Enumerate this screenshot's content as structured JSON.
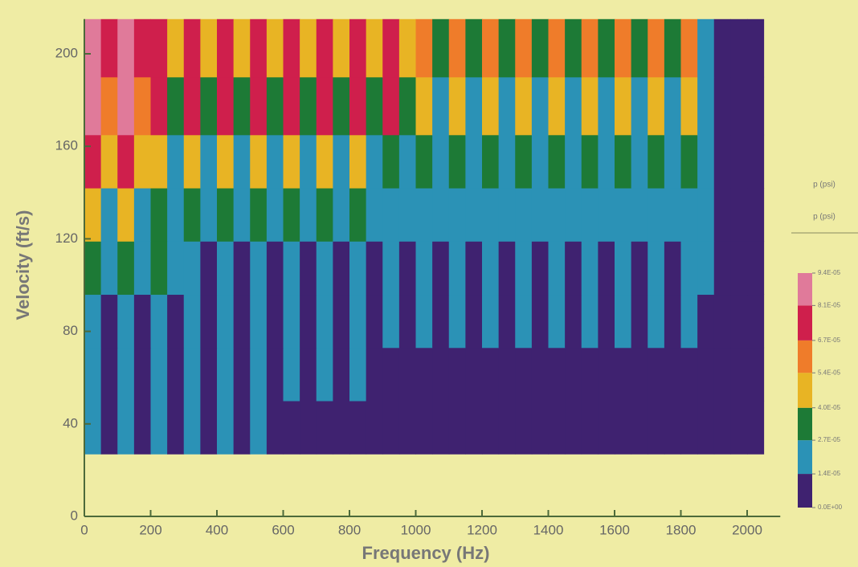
{
  "chart_data": {
    "type": "heatmap",
    "x_label": "Frequency (Hz)",
    "y_label": "Velocity (ft/s)",
    "legend_title": "p (psi)",
    "legend_subtitle": "p (psi)",
    "xlim": [
      0,
      2100
    ],
    "ylim": [
      0,
      215
    ],
    "xticks": [
      0,
      200,
      400,
      600,
      800,
      1000,
      1200,
      1400,
      1600,
      1800,
      2000
    ],
    "yticks": [
      0,
      40,
      80,
      120,
      160,
      200
    ],
    "x_bins": [
      0,
      50,
      100,
      150,
      200,
      250,
      300,
      350,
      400,
      450,
      500,
      550,
      600,
      650,
      700,
      750,
      800,
      850,
      900,
      950,
      1000,
      1050,
      1100,
      1150,
      1200,
      1250,
      1300,
      1350,
      1400,
      1450,
      1500,
      1550,
      1600,
      1650,
      1700,
      1750,
      1800,
      1850,
      1900,
      1950,
      2000,
      2050
    ],
    "y_bins": [
      27,
      50,
      73,
      96,
      119,
      142,
      165,
      190,
      215
    ],
    "values": [
      [
        1.8e-05,
        6e-06,
        1.8e-05,
        6e-06,
        1.8e-05,
        6e-06,
        1.8e-05,
        6e-06,
        1.8e-05,
        6e-06,
        1.8e-05,
        6e-06,
        5e-06,
        5e-06,
        5e-06,
        5e-06,
        5e-06,
        5e-06,
        5e-06,
        5e-06,
        5e-06,
        5e-06,
        5e-06,
        5e-06,
        5e-06,
        5e-06,
        5e-06,
        5e-06,
        5e-06,
        5e-06,
        5e-06,
        5e-06,
        5e-06,
        5e-06,
        5e-06,
        5e-06,
        5e-06,
        5e-06,
        5e-06,
        5e-06,
        5e-06
      ],
      [
        2e-05,
        8e-06,
        2e-05,
        8e-06,
        2e-05,
        8e-06,
        2e-05,
        8e-06,
        2e-05,
        8e-06,
        2e-05,
        8e-06,
        2e-05,
        8e-06,
        2e-05,
        8e-06,
        2e-05,
        8e-06,
        5e-06,
        5e-06,
        5e-06,
        5e-06,
        5e-06,
        5e-06,
        5e-06,
        5e-06,
        5e-06,
        5e-06,
        5e-06,
        5e-06,
        5e-06,
        5e-06,
        5e-06,
        5e-06,
        5e-06,
        5e-06,
        5e-06,
        5e-06,
        5e-06,
        5e-06,
        5e-06
      ],
      [
        2.3e-05,
        1e-05,
        2.3e-05,
        1e-05,
        2.3e-05,
        1e-05,
        2.3e-05,
        1e-05,
        2.3e-05,
        1e-05,
        2.3e-05,
        1e-05,
        2.3e-05,
        1e-05,
        2.3e-05,
        1e-05,
        2.3e-05,
        1e-05,
        2.3e-05,
        1e-05,
        2.3e-05,
        1e-05,
        2.3e-05,
        1e-05,
        2.3e-05,
        1e-05,
        1.6e-05,
        9e-06,
        1.6e-05,
        9e-06,
        1.6e-05,
        9e-06,
        1.6e-05,
        9e-06,
        1.6e-05,
        9e-06,
        1.6e-05,
        5e-06,
        5e-06,
        5e-06,
        5e-06
      ],
      [
        3e-05,
        1.6e-05,
        3e-05,
        1.6e-05,
        3e-05,
        1.6e-05,
        2.2e-05,
        1.2e-05,
        2.2e-05,
        1.2e-05,
        2.2e-05,
        1.2e-05,
        2.2e-05,
        1.2e-05,
        2.2e-05,
        1.2e-05,
        2.2e-05,
        1.2e-05,
        2.2e-05,
        1.2e-05,
        2.2e-05,
        1.2e-05,
        2.2e-05,
        1.2e-05,
        2.2e-05,
        1.2e-05,
        2.2e-05,
        1.2e-05,
        2.2e-05,
        1.2e-05,
        2.2e-05,
        1.2e-05,
        2.2e-05,
        1.2e-05,
        2.2e-05,
        1.2e-05,
        2.2e-05,
        1.5e-05,
        6e-06,
        6e-06,
        6e-06
      ],
      [
        4.5e-05,
        2.5e-05,
        4.5e-05,
        2.5e-05,
        3.2e-05,
        1.8e-05,
        3.2e-05,
        1.8e-05,
        3.2e-05,
        1.8e-05,
        3.2e-05,
        1.8e-05,
        3.2e-05,
        1.8e-05,
        3.2e-05,
        1.8e-05,
        3.2e-05,
        1.8e-05,
        2.4e-05,
        1.6e-05,
        2.4e-05,
        1.6e-05,
        2.4e-05,
        1.6e-05,
        2.4e-05,
        1.6e-05,
        2.4e-05,
        1.6e-05,
        2.4e-05,
        1.6e-05,
        2.4e-05,
        1.6e-05,
        2.4e-05,
        1.6e-05,
        2.4e-05,
        1.6e-05,
        2.4e-05,
        1.8e-05,
        6e-06,
        6e-06,
        6e-06
      ],
      [
        7e-05,
        4e-05,
        7e-05,
        4e-05,
        5e-05,
        2.6e-05,
        5e-05,
        2.6e-05,
        5e-05,
        2.6e-05,
        5e-05,
        2.6e-05,
        5e-05,
        2.6e-05,
        5e-05,
        2.6e-05,
        5e-05,
        2.6e-05,
        3.3e-05,
        2e-05,
        3.3e-05,
        2e-05,
        3.3e-05,
        2e-05,
        3.3e-05,
        2e-05,
        3.3e-05,
        2e-05,
        3.3e-05,
        2e-05,
        3.3e-05,
        2e-05,
        3.3e-05,
        2e-05,
        3.3e-05,
        2e-05,
        3.3e-05,
        2e-05,
        6e-06,
        6e-06,
        6e-06
      ],
      [
        8.5e-05,
        6e-05,
        8.5e-05,
        6e-05,
        7.2e-05,
        3.2e-05,
        7.2e-05,
        3.2e-05,
        7.2e-05,
        3.2e-05,
        7.2e-05,
        3.2e-05,
        7.2e-05,
        3.2e-05,
        7.2e-05,
        3.2e-05,
        7.2e-05,
        3.2e-05,
        7.2e-05,
        3.2e-05,
        4.6e-05,
        2.4e-05,
        4.6e-05,
        2.4e-05,
        4.6e-05,
        2.4e-05,
        4.6e-05,
        2.4e-05,
        4.6e-05,
        2.4e-05,
        4.6e-05,
        2.4e-05,
        4.6e-05,
        2.4e-05,
        4.6e-05,
        2.4e-05,
        4.6e-05,
        2.2e-05,
        6e-06,
        6e-06,
        6e-06
      ],
      [
        8.8e-05,
        7.5e-05,
        8.8e-05,
        7.5e-05,
        7.5e-05,
        4.2e-05,
        7.5e-05,
        4.2e-05,
        7.5e-05,
        4.2e-05,
        7.5e-05,
        4.2e-05,
        7.5e-05,
        4.2e-05,
        7.5e-05,
        4.2e-05,
        7.5e-05,
        4.2e-05,
        7.5e-05,
        4.2e-05,
        5.8e-05,
        3.2e-05,
        5.8e-05,
        3.2e-05,
        5.8e-05,
        3.2e-05,
        5.8e-05,
        3.2e-05,
        5.8e-05,
        3.2e-05,
        5.8e-05,
        3.2e-05,
        5.8e-05,
        3.2e-05,
        5.8e-05,
        3.2e-05,
        5.8e-05,
        2.4e-05,
        6e-06,
        6e-06,
        6e-06
      ]
    ],
    "colorbar_ticks": [
      {
        "value": 0,
        "label": "0.0E+00"
      },
      {
        "value": 1.35e-05,
        "label": "1.4E-05"
      },
      {
        "value": 2.7e-05,
        "label": "2.7E-05"
      },
      {
        "value": 4e-05,
        "label": "4.0E-05"
      },
      {
        "value": 5.4e-05,
        "label": "5.4E-05"
      },
      {
        "value": 6.7e-05,
        "label": "6.7E-05"
      },
      {
        "value": 8.1e-05,
        "label": "8.1E-05"
      },
      {
        "value": 9.4e-05,
        "label": "9.4E-05"
      }
    ],
    "colorscale": [
      "#3f2270",
      "#2b92b6",
      "#1d7a36",
      "#e8b424",
      "#ef7c2a",
      "#cf1f4c",
      "#e07a9a"
    ]
  }
}
